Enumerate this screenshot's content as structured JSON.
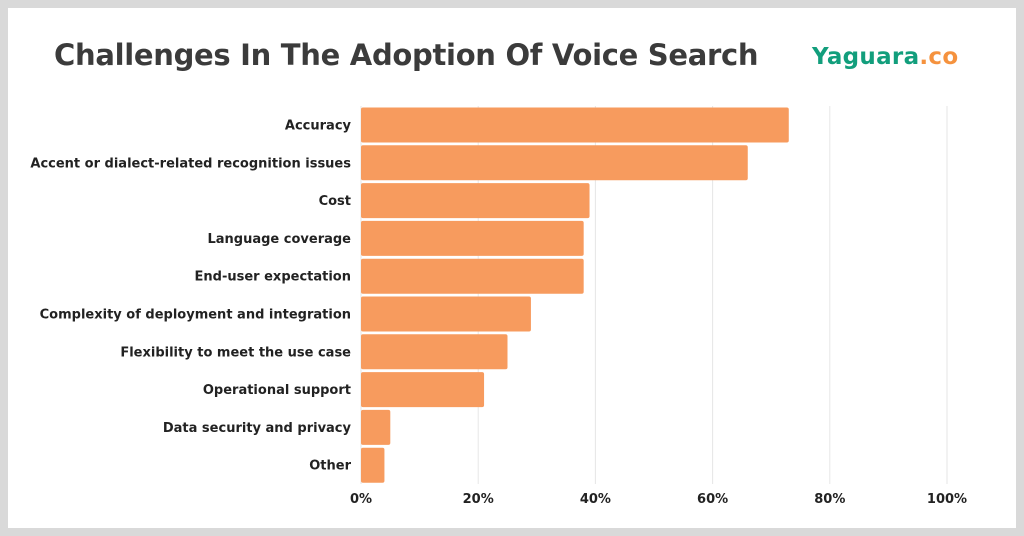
{
  "chart_data": {
    "type": "bar",
    "orientation": "horizontal",
    "title": "Challenges In The Adoption Of Voice Search",
    "categories": [
      "Accuracy",
      "Accent or dialect-related recognition issues",
      "Cost",
      "Language coverage",
      "End-user expectation",
      "Complexity of deployment and integration",
      "Flexibility to meet the use case",
      "Operational support",
      "Data security and privacy",
      "Other"
    ],
    "values": [
      73,
      66,
      39,
      38,
      38,
      29,
      25,
      21,
      5,
      4
    ],
    "xlim": [
      0,
      100
    ],
    "x_ticks": [
      "0%",
      "20%",
      "40%",
      "60%",
      "80%",
      "100%"
    ],
    "grid": true,
    "bar_color": "#f79b5e",
    "xlabel": "",
    "ylabel": ""
  },
  "logo": {
    "main": "Yaguara",
    "suffix": ".co",
    "main_color": "#129e7c",
    "suffix_color": "#f5923e"
  }
}
